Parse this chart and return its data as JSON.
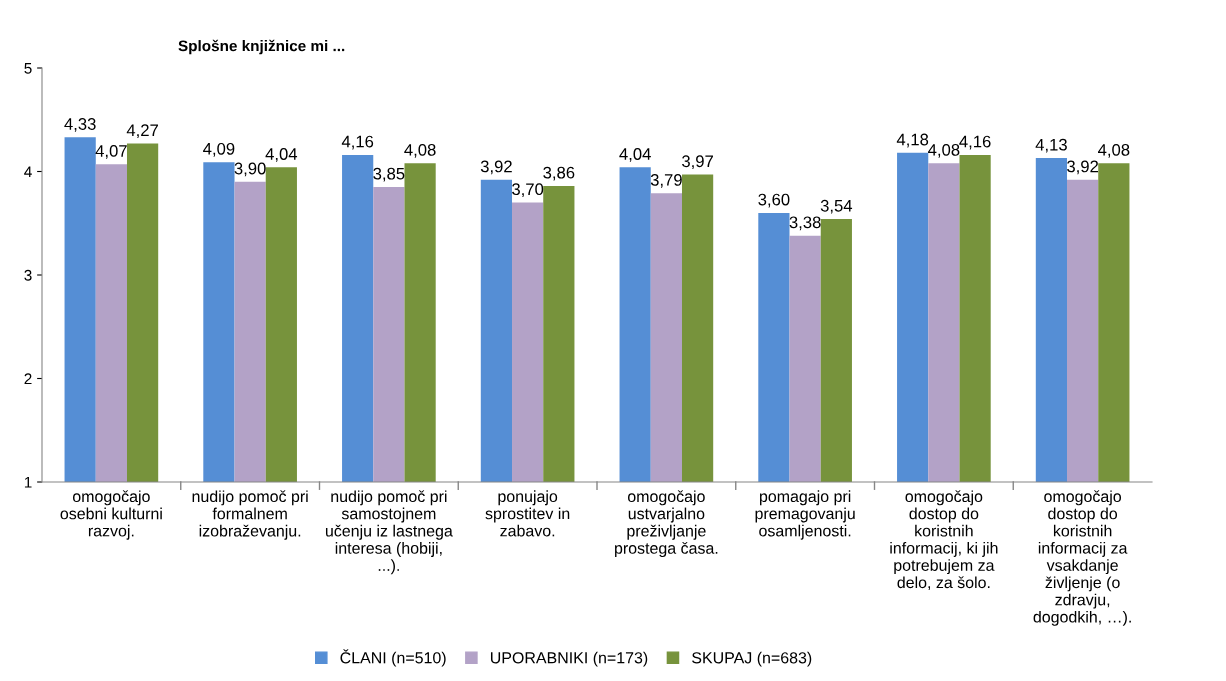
{
  "chart_data": {
    "type": "bar",
    "title": "Splošne knjižnice mi ...",
    "categories": [
      "omogočajo\nosebni kulturni\nrazvoj.",
      "nudijo pomoč pri\nformalnem\nizobraževanju.",
      "nudijo pomoč pri\nsamostojnem\nučenju iz lastnega\ninteresa (hobiji,\n...).",
      "ponujajo\nsprostitev in\nzabavo.",
      "omogočajo\nustvarjalno\npreživljanje\nprostega časa.",
      "pomagajo pri\npremagovanju\nosamljenosti.",
      "omogočajo\ndostop do\nkoristnih\ninformacij, ki jih\npotrebujem za\ndelo, za šolo.",
      "omogočajo\ndostop do\nkoristnih\ninformacij za\nvsakdanje\nživljenje (o\nzdravju,\ndogodkih, …)."
    ],
    "series": [
      {
        "name": "ČLANI (n=510)",
        "color": "#558ed5",
        "values": [
          4.33,
          4.09,
          4.16,
          3.92,
          4.04,
          3.6,
          4.18,
          4.13
        ],
        "value_labels": [
          "4,33",
          "4,09",
          "4,16",
          "3,92",
          "4,04",
          "3,60",
          "4,18",
          "4,13"
        ]
      },
      {
        "name": "UPORABNIKI (n=173)",
        "color": "#b3a2c7",
        "values": [
          4.07,
          3.9,
          3.85,
          3.7,
          3.79,
          3.38,
          4.08,
          3.92
        ],
        "value_labels": [
          "4,07",
          "3,90",
          "3,85",
          "3,70",
          "3,79",
          "3,38",
          "4,08",
          "3,92"
        ]
      },
      {
        "name": "SKUPAJ (n=683)",
        "color": "#77933c",
        "values": [
          4.27,
          4.04,
          4.08,
          3.86,
          3.97,
          3.54,
          4.16,
          4.08
        ],
        "value_labels": [
          "4,27",
          "4,04",
          "4,08",
          "3,86",
          "3,97",
          "3,54",
          "4,16",
          "4,08"
        ]
      }
    ],
    "ylim": [
      1,
      5
    ],
    "yticks": [
      1,
      2,
      3,
      4,
      5
    ],
    "grid": false,
    "legend": "bottom"
  }
}
